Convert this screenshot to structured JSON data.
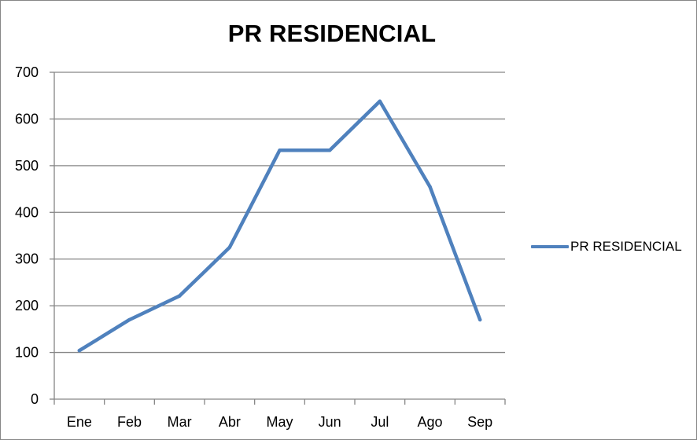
{
  "chart_data": {
    "type": "line",
    "title": "PR RESIDENCIAL",
    "categories": [
      "Ene",
      "Feb",
      "Mar",
      "Abr",
      "May",
      "Jun",
      "Jul",
      "Ago",
      "Sep"
    ],
    "series": [
      {
        "name": "PR RESIDENCIAL",
        "values": [
          104,
          170,
          221,
          325,
          533,
          533,
          638,
          455,
          170
        ],
        "color": "#4f81bd"
      }
    ],
    "ylim": [
      0,
      700
    ],
    "yticks": [
      0,
      100,
      200,
      300,
      400,
      500,
      600,
      700
    ],
    "grid": true,
    "legend_position": "right"
  }
}
